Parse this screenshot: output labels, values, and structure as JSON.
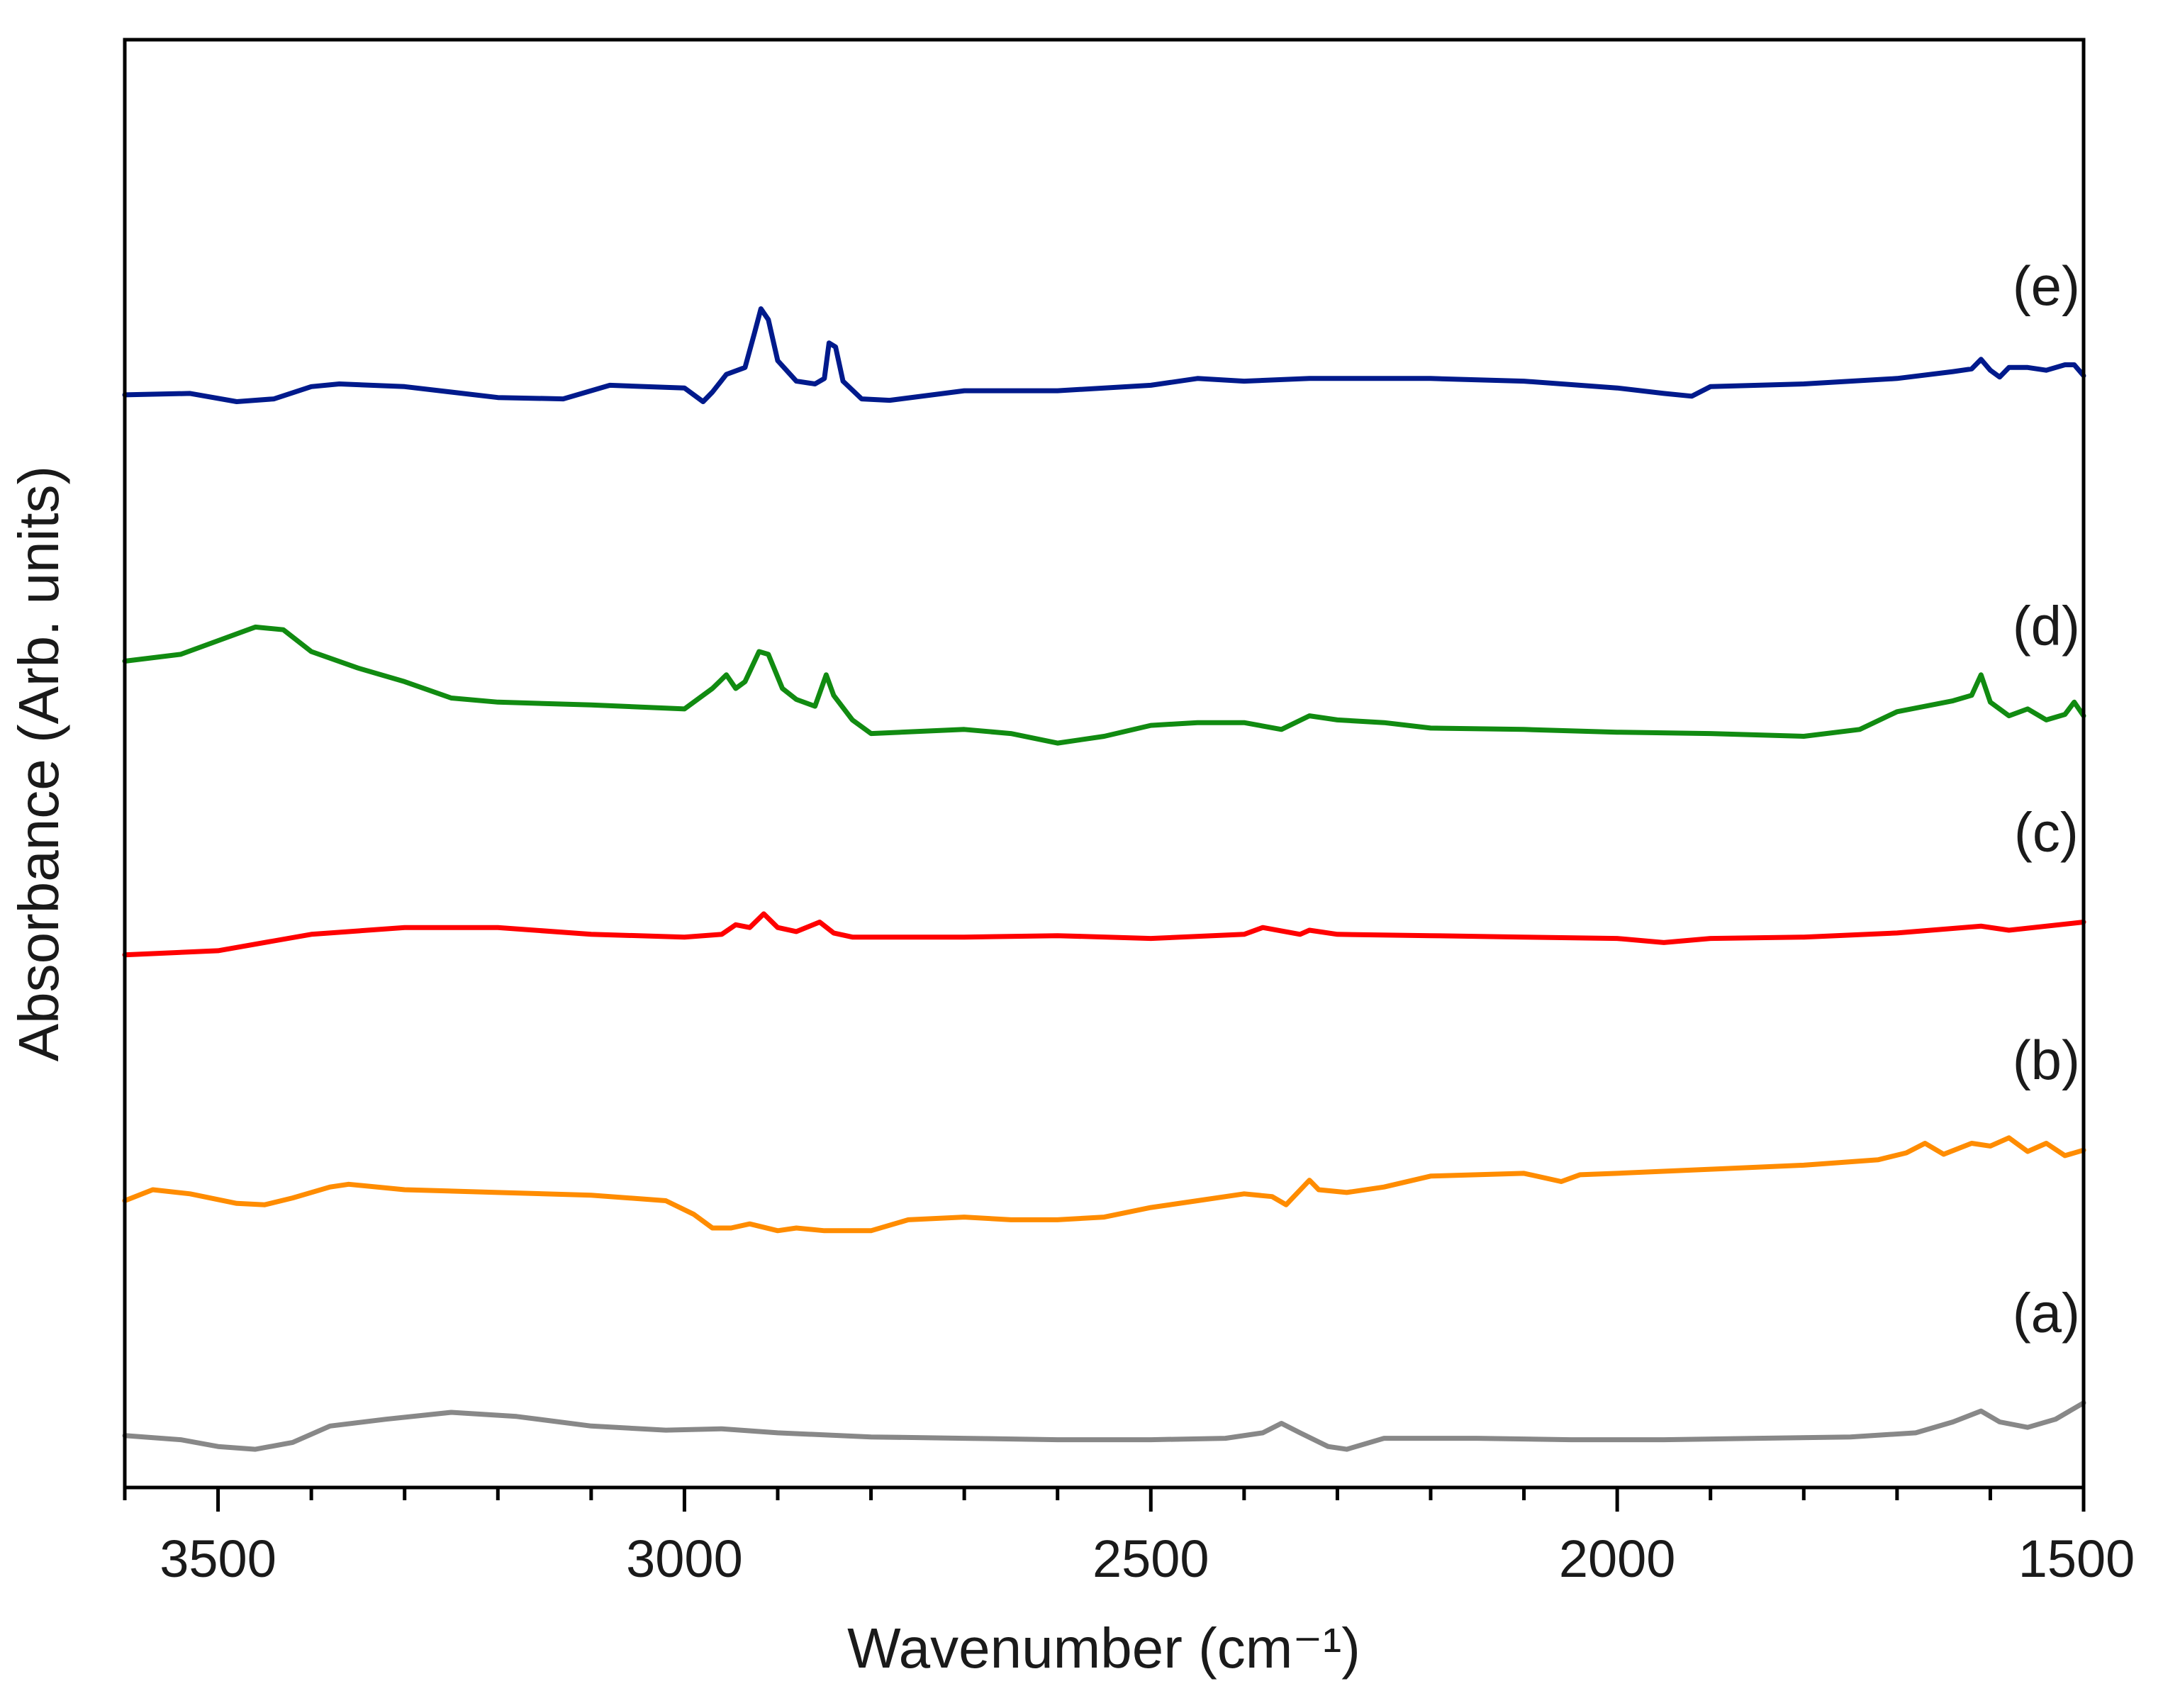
{
  "chart_data": {
    "type": "line",
    "xlabel": "Wavenumber (cm⁻¹)",
    "ylabel": "Absorbance (Arb. units)",
    "xlim": [
      3600,
      1500
    ],
    "x_reversed": true,
    "ylim": [
      0,
      10.6
    ],
    "y_ticks_shown": false,
    "x_ticks": [
      3500,
      3000,
      2500,
      2000,
      1500
    ],
    "x_minor_tick_step": 100,
    "grid": false,
    "legend": "none",
    "series": [
      {
        "name": "(a)",
        "color": "#888888",
        "x": [
          3600,
          3540,
          3500,
          3460,
          3420,
          3380,
          3320,
          3250,
          3180,
          3100,
          3020,
          2960,
          2900,
          2800,
          2700,
          2600,
          2500,
          2420,
          2380,
          2360,
          2340,
          2310,
          2290,
          2250,
          2150,
          2050,
          1950,
          1850,
          1750,
          1680,
          1640,
          1610,
          1590,
          1560,
          1530,
          1500
        ],
        "y": [
          0.38,
          0.35,
          0.3,
          0.28,
          0.33,
          0.45,
          0.5,
          0.55,
          0.52,
          0.45,
          0.42,
          0.43,
          0.4,
          0.37,
          0.36,
          0.35,
          0.35,
          0.36,
          0.4,
          0.47,
          0.4,
          0.3,
          0.28,
          0.36,
          0.36,
          0.35,
          0.35,
          0.36,
          0.37,
          0.4,
          0.48,
          0.56,
          0.48,
          0.44,
          0.5,
          0.62
        ]
      },
      {
        "name": "(b)",
        "color": "#ff8c00",
        "x": [
          3600,
          3570,
          3530,
          3480,
          3450,
          3420,
          3380,
          3360,
          3300,
          3200,
          3100,
          3020,
          2990,
          2970,
          2950,
          2930,
          2900,
          2880,
          2850,
          2800,
          2760,
          2700,
          2650,
          2600,
          2550,
          2500,
          2450,
          2400,
          2370,
          2355,
          2330,
          2320,
          2290,
          2250,
          2200,
          2100,
          2060,
          2040,
          2000,
          1900,
          1800,
          1720,
          1690,
          1670,
          1650,
          1620,
          1600,
          1580,
          1560,
          1540,
          1520,
          1500
        ],
        "y": [
          2.1,
          2.18,
          2.15,
          2.08,
          2.07,
          2.12,
          2.2,
          2.22,
          2.18,
          2.16,
          2.14,
          2.1,
          2.0,
          1.9,
          1.9,
          1.93,
          1.88,
          1.9,
          1.88,
          1.88,
          1.96,
          1.98,
          1.96,
          1.96,
          1.98,
          2.05,
          2.1,
          2.15,
          2.13,
          2.07,
          2.25,
          2.18,
          2.16,
          2.2,
          2.28,
          2.3,
          2.24,
          2.29,
          2.3,
          2.33,
          2.36,
          2.4,
          2.45,
          2.52,
          2.44,
          2.52,
          2.5,
          2.56,
          2.46,
          2.52,
          2.43,
          2.47
        ]
      },
      {
        "name": "(c)",
        "color": "#ff0000",
        "x": [
          3600,
          3500,
          3400,
          3300,
          3200,
          3100,
          3000,
          2960,
          2945,
          2930,
          2915,
          2900,
          2880,
          2855,
          2840,
          2820,
          2800,
          2700,
          2600,
          2500,
          2400,
          2380,
          2340,
          2330,
          2300,
          2200,
          2100,
          2000,
          1950,
          1900,
          1800,
          1700,
          1610,
          1580,
          1500
        ],
        "y": [
          3.9,
          3.93,
          4.05,
          4.1,
          4.1,
          4.05,
          4.03,
          4.05,
          4.12,
          4.1,
          4.2,
          4.1,
          4.07,
          4.14,
          4.06,
          4.03,
          4.03,
          4.03,
          4.04,
          4.02,
          4.05,
          4.1,
          4.05,
          4.08,
          4.05,
          4.04,
          4.03,
          4.02,
          3.99,
          4.02,
          4.03,
          4.06,
          4.11,
          4.08,
          4.14
        ]
      },
      {
        "name": "(d)",
        "color": "#118b11",
        "x": [
          3600,
          3540,
          3500,
          3460,
          3430,
          3400,
          3350,
          3300,
          3250,
          3200,
          3100,
          3000,
          2970,
          2955,
          2945,
          2935,
          2920,
          2910,
          2895,
          2880,
          2860,
          2848,
          2840,
          2820,
          2800,
          2700,
          2650,
          2600,
          2550,
          2500,
          2450,
          2400,
          2360,
          2330,
          2300,
          2250,
          2200,
          2100,
          2000,
          1900,
          1800,
          1740,
          1700,
          1640,
          1620,
          1610,
          1600,
          1580,
          1560,
          1540,
          1520,
          1510,
          1500
        ],
        "y": [
          6.05,
          6.1,
          6.2,
          6.3,
          6.28,
          6.12,
          6.0,
          5.9,
          5.78,
          5.75,
          5.73,
          5.7,
          5.85,
          5.95,
          5.85,
          5.9,
          6.12,
          6.1,
          5.85,
          5.77,
          5.72,
          5.95,
          5.8,
          5.62,
          5.52,
          5.55,
          5.52,
          5.45,
          5.5,
          5.58,
          5.6,
          5.6,
          5.55,
          5.65,
          5.62,
          5.6,
          5.56,
          5.55,
          5.53,
          5.52,
          5.5,
          5.55,
          5.68,
          5.76,
          5.8,
          5.95,
          5.75,
          5.65,
          5.7,
          5.62,
          5.66,
          5.75,
          5.65
        ]
      },
      {
        "name": "(e)",
        "color": "#001a8c",
        "x": [
          3600,
          3530,
          3480,
          3440,
          3400,
          3370,
          3300,
          3200,
          3130,
          3080,
          3000,
          2980,
          2970,
          2955,
          2935,
          2925,
          2918,
          2910,
          2900,
          2880,
          2860,
          2850,
          2845,
          2838,
          2830,
          2810,
          2780,
          2700,
          2600,
          2500,
          2450,
          2400,
          2330,
          2200,
          2100,
          2000,
          1950,
          1920,
          1900,
          1800,
          1700,
          1640,
          1620,
          1610,
          1600,
          1590,
          1580,
          1560,
          1540,
          1520,
          1510,
          1500
        ],
        "y": [
          8.0,
          8.01,
          7.95,
          7.97,
          8.06,
          8.08,
          8.06,
          7.98,
          7.97,
          8.07,
          8.05,
          7.95,
          8.02,
          8.15,
          8.2,
          8.45,
          8.63,
          8.55,
          8.25,
          8.1,
          8.08,
          8.12,
          8.38,
          8.35,
          8.1,
          7.97,
          7.96,
          8.03,
          8.03,
          8.07,
          8.12,
          8.1,
          8.12,
          8.12,
          8.1,
          8.05,
          8.01,
          7.99,
          8.06,
          8.08,
          8.12,
          8.17,
          8.19,
          8.26,
          8.18,
          8.13,
          8.2,
          8.2,
          8.18,
          8.22,
          8.22,
          8.14
        ]
      }
    ]
  }
}
